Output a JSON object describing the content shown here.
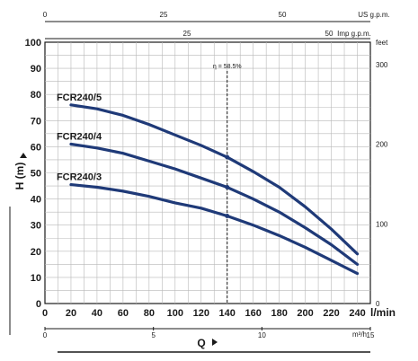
{
  "chart_data": {
    "type": "line",
    "x_unit": "l/min",
    "y_unit": "m",
    "xlabel": "Q",
    "ylabel": "H (m)",
    "xlim": [
      0,
      250
    ],
    "ylim": [
      0,
      100
    ],
    "x_ticks": [
      0,
      20,
      40,
      60,
      80,
      100,
      120,
      140,
      160,
      180,
      200,
      220,
      240
    ],
    "y_ticks": [
      0,
      10,
      20,
      30,
      40,
      50,
      60,
      70,
      80,
      90,
      100
    ],
    "grid": true,
    "series": [
      {
        "name": "FCR240/5",
        "x": [
          20,
          40,
          60,
          80,
          100,
          120,
          140,
          160,
          180,
          200,
          220,
          240
        ],
        "y": [
          76,
          74.5,
          72,
          68.5,
          64.5,
          60.5,
          56,
          50.5,
          44.5,
          37,
          28.5,
          19
        ]
      },
      {
        "name": "FCR240/4",
        "x": [
          20,
          40,
          60,
          80,
          100,
          120,
          140,
          160,
          180,
          200,
          220,
          240
        ],
        "y": [
          61,
          59.5,
          57.5,
          54.5,
          51.5,
          48,
          44.5,
          40,
          35,
          29,
          22.5,
          15
        ]
      },
      {
        "name": "FCR240/3",
        "x": [
          20,
          40,
          60,
          80,
          100,
          120,
          140,
          160,
          180,
          200,
          220,
          240
        ],
        "y": [
          45.5,
          44.5,
          43,
          41,
          38.5,
          36.5,
          33.5,
          30,
          26,
          21.5,
          16.5,
          11.5
        ]
      }
    ],
    "annotation": {
      "text": "η = 58.5%",
      "x": 140
    },
    "top_axis_us": {
      "unit": "US g.p.m.",
      "ticks": [
        "0",
        "25",
        "50"
      ]
    },
    "top_axis_imp": {
      "unit": "Imp g.p.m.",
      "ticks": [
        "25",
        "50"
      ]
    },
    "right_axis": {
      "unit": "feet",
      "ticks": [
        "0",
        "100",
        "200",
        "300"
      ]
    },
    "bottom_axis_m3h": {
      "unit": "m³/h",
      "ticks": [
        "0",
        "5",
        "10",
        "15"
      ]
    }
  }
}
